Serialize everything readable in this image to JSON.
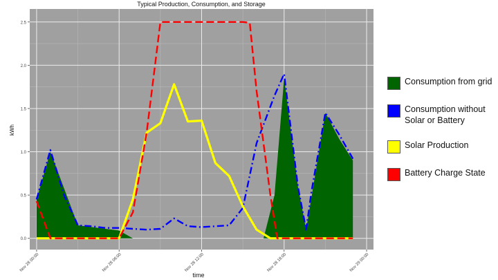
{
  "chart_data": {
    "type": "area+line",
    "title": "Typical Production, Consumption, and Storage",
    "xlabel": "time",
    "ylabel": "kWh",
    "ylim": [
      -0.13,
      2.65
    ],
    "xlim": [
      -0.5,
      24.5
    ],
    "grid": true,
    "legend_position": "right",
    "x_ticks": [
      {
        "x": 0,
        "label": "Nov 28 00:00"
      },
      {
        "x": 6,
        "label": "Nov 28 06:00"
      },
      {
        "x": 12,
        "label": "Nov 28 12:00"
      },
      {
        "x": 18,
        "label": "Nov 28 18:00"
      },
      {
        "x": 24,
        "label": "Nov 29 00:00"
      }
    ],
    "y_ticks": [
      {
        "y": 0.0,
        "label": "0.0"
      },
      {
        "y": 0.5,
        "label": "0.5"
      },
      {
        "y": 1.0,
        "label": "1.0"
      },
      {
        "y": 1.5,
        "label": "1.5"
      },
      {
        "y": 2.0,
        "label": "2.0"
      },
      {
        "y": 2.5,
        "label": "2.5"
      }
    ],
    "series": [
      {
        "name": "Consumption from grid",
        "style": "area",
        "color": "#006400",
        "segments": [
          [
            [
              0,
              0.0
            ],
            [
              0,
              0.45
            ],
            [
              1,
              1.0
            ],
            [
              3,
              0.15
            ],
            [
              5,
              0.11
            ],
            [
              6,
              0.09
            ],
            [
              7,
              0.0
            ]
          ],
          [
            [
              16.5,
              0.0
            ],
            [
              17.3,
              0.5
            ],
            [
              18,
              1.85
            ],
            [
              19,
              0.6
            ],
            [
              19.6,
              0.1
            ],
            [
              21,
              1.45
            ],
            [
              22,
              1.15
            ],
            [
              23,
              0.9
            ],
            [
              23,
              0.0
            ]
          ]
        ]
      },
      {
        "name": "Consumption without Solar or Battery",
        "style": "dashdot",
        "color": "#0000ff",
        "points": [
          [
            0,
            0.45
          ],
          [
            1,
            1.02
          ],
          [
            2,
            0.5
          ],
          [
            3,
            0.15
          ],
          [
            4,
            0.14
          ],
          [
            5,
            0.12
          ],
          [
            6,
            0.12
          ],
          [
            7,
            0.11
          ],
          [
            8,
            0.1
          ],
          [
            9,
            0.11
          ],
          [
            10,
            0.23
          ],
          [
            11,
            0.14
          ],
          [
            12,
            0.13
          ],
          [
            13,
            0.14
          ],
          [
            14,
            0.15
          ],
          [
            15,
            0.35
          ],
          [
            16,
            1.1
          ],
          [
            17.3,
            1.65
          ],
          [
            18,
            1.9
          ],
          [
            19,
            0.6
          ],
          [
            19.6,
            0.1
          ],
          [
            20,
            0.55
          ],
          [
            21,
            1.45
          ],
          [
            22,
            1.2
          ],
          [
            23,
            0.92
          ]
        ]
      },
      {
        "name": "Solar Production",
        "style": "solid",
        "color": "#ffff00",
        "points": [
          [
            0,
            0.0
          ],
          [
            6,
            0.0
          ],
          [
            7,
            0.45
          ],
          [
            8,
            1.22
          ],
          [
            9,
            1.33
          ],
          [
            10,
            1.78
          ],
          [
            11,
            1.35
          ],
          [
            12,
            1.36
          ],
          [
            13,
            0.87
          ],
          [
            14,
            0.72
          ],
          [
            15,
            0.37
          ],
          [
            16,
            0.1
          ],
          [
            17,
            0.0
          ],
          [
            23,
            0.0
          ]
        ]
      },
      {
        "name": "Battery Charge State",
        "style": "dashed",
        "color": "#ff0000",
        "points": [
          [
            0,
            0.43
          ],
          [
            1,
            0.0
          ],
          [
            6,
            0.0
          ],
          [
            7,
            0.3
          ],
          [
            8,
            1.22
          ],
          [
            9,
            2.5
          ],
          [
            15,
            2.5
          ],
          [
            15.5,
            2.49
          ],
          [
            16,
            1.7
          ],
          [
            17,
            0.5
          ],
          [
            17.5,
            0.0
          ],
          [
            23,
            0.0
          ]
        ]
      }
    ]
  },
  "legend": {
    "items": [
      {
        "label": "Consumption from grid",
        "color": "#006400"
      },
      {
        "label": "Consumption without Solar or Battery",
        "color": "#0000ff"
      },
      {
        "label": "Solar Production",
        "color": "#ffff00"
      },
      {
        "label": "Battery Charge State",
        "color": "#ff0000"
      }
    ]
  }
}
